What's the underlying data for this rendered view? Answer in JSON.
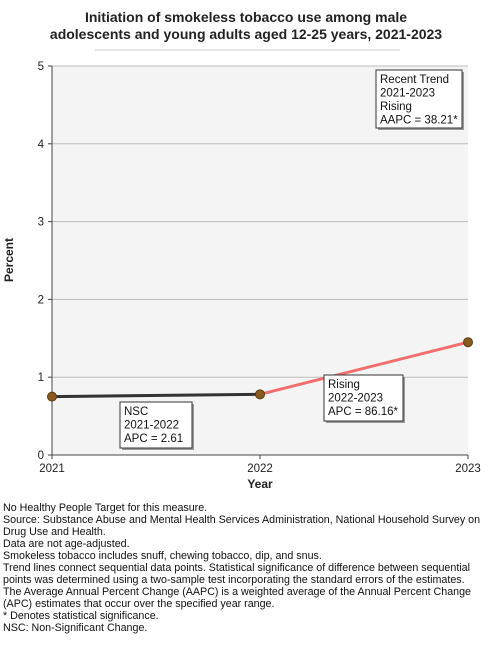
{
  "chart_data": {
    "type": "line",
    "title": [
      "Initiation of smokeless tobacco use among male",
      "adolescents and young adults aged 12-25 years, 2021-2023"
    ],
    "xlabel": "Year",
    "ylabel": "Percent",
    "x": [
      2021,
      2022,
      2023
    ],
    "xlim": [
      2021,
      2023
    ],
    "ylim": [
      0,
      5
    ],
    "yticks": [
      0,
      1,
      2,
      3,
      4,
      5
    ],
    "grid": true,
    "series": [
      {
        "values": [
          0.75,
          0.78,
          1.45
        ]
      }
    ],
    "segments": [
      {
        "from": 2021,
        "to": 2022,
        "color": "#333333"
      },
      {
        "from": 2022,
        "to": 2023,
        "color": "#f07070"
      }
    ],
    "annotations": [
      {
        "lines": [
          "Recent Trend",
          "2021-2023",
          "Rising",
          "AAPC = 38.21*"
        ],
        "placement": "top-right"
      },
      {
        "lines": [
          "NSC",
          "2021-2022",
          "APC =  2.61"
        ],
        "placement": "below segment 2021-2022"
      },
      {
        "lines": [
          "Rising",
          "2022-2023",
          "APC = 86.16*"
        ],
        "placement": "below segment 2022-2023"
      }
    ]
  },
  "colors": {
    "plot_bg": "#f4f4f4",
    "grid": "#bdbdbd",
    "point": "#8b5a1e",
    "nsc_line": "#333333",
    "rising_line": "#f07070"
  },
  "notes": [
    "No Healthy People Target for this measure.",
    "Source: Substance Abuse and Mental Health Services Administration, National Household Survey on Drug Use and Health.",
    "Data are not age-adjusted.",
    "Smokeless tobacco includes snuff, chewing tobacco, dip, and snus.",
    "Trend lines connect sequential data points. Statistical significance of difference between sequential points was determined using a two-sample test incorporating the standard errors of the estimates.",
    "The Average Annual Percent Change (AAPC) is a weighted average of the Annual Percent Change (APC) estimates that occur over the specified year range.",
    "* Denotes statistical significance.",
    "NSC: Non-Significant Change."
  ]
}
